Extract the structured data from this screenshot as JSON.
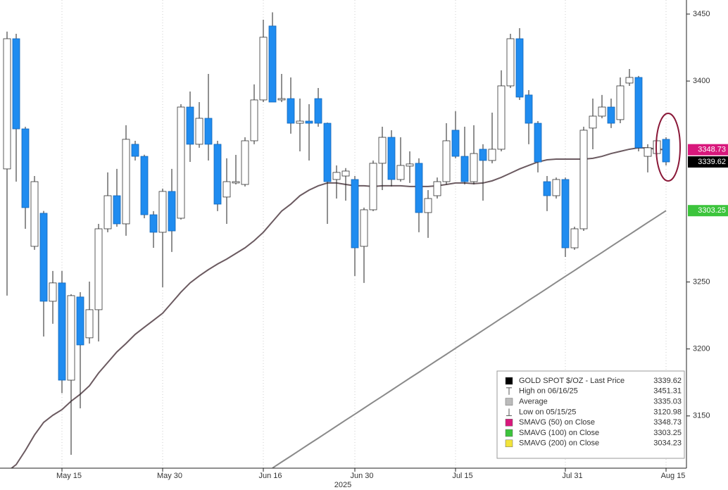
{
  "chart_data": {
    "type": "candlestick",
    "categories": [
      null,
      null,
      null,
      null,
      null,
      null,
      "May 15",
      null,
      null,
      null,
      null,
      null,
      null,
      null,
      null,
      null,
      null,
      "May 30",
      null,
      null,
      null,
      null,
      null,
      null,
      null,
      null,
      null,
      null,
      "Jun 16",
      null,
      null,
      null,
      null,
      null,
      null,
      null,
      null,
      null,
      "Jun 30",
      null,
      null,
      null,
      null,
      null,
      null,
      null,
      null,
      null,
      null,
      "Jul 15",
      null,
      null,
      null,
      null,
      null,
      null,
      null,
      null,
      null,
      null,
      null,
      "Jul 31",
      null,
      null,
      null,
      null,
      null,
      null,
      null,
      null,
      null,
      null,
      "Aug 15"
    ],
    "x_axis_year": "2025",
    "open": [
      3334.4,
      3431.6,
      3364.3,
      3276.6,
      3301.3,
      3235.6,
      3249.3,
      3176.7,
      3238.8,
      3208.3,
      3229.3,
      3289.7,
      3314.4,
      3293.4,
      3352.8,
      3343.8,
      3300.2,
      3287.1,
      3317.6,
      3297.6,
      3380.6,
      3352.8,
      3372.2,
      3352.8,
      3313.4,
      3323.9,
      3322.8,
      3355.4,
      3385.9,
      3441.1,
      3385.9,
      3386.9,
      3368.5,
      3370.1,
      3386.9,
      3368.5,
      3326.5,
      3329.1,
      3326.5,
      3276.6,
      3303.9,
      3338.6,
      3358,
      3326.5,
      3336.5,
      3338.6,
      3301.8,
      3314.4,
      3324.9,
      3363.3,
      3343.8,
      3324.9,
      3349.1,
      3340.7,
      3349.1,
      3396.4,
      3431.6,
      3389.6,
      3368.5,
      3324.9,
      3314.4,
      3326.5,
      3275.5,
      3289.7,
      3364.9,
      3373.8,
      3380.6,
      3371.2,
      3398.5,
      3402.7,
      3343.8,
      3345.9,
      3356.5
    ],
    "high": [
      3436.9,
      3435.3,
      3365.8,
      3329.1,
      3303,
      3258.2,
      3258.2,
      3240.9,
      3242.4,
      3250.3,
      3293.4,
      3331.8,
      3334.4,
      3367,
      3355.4,
      3345,
      3302.9,
      3319.7,
      3334.4,
      3382.7,
      3392.2,
      3384.3,
      3405.3,
      3355.4,
      3342.3,
      3344.9,
      3358,
      3397.5,
      3445.8,
      3451.31,
      3405.3,
      3402.7,
      3386.9,
      3382.7,
      3394.8,
      3369,
      3337,
      3335,
      3329.1,
      3305.5,
      3340.7,
      3365.9,
      3363.3,
      3358,
      3347.5,
      3342.3,
      3318.6,
      3328,
      3368.5,
      3377.5,
      3365.9,
      3367,
      3352.8,
      3376.4,
      3408,
      3435.3,
      3439.5,
      3393.2,
      3370.1,
      3329.1,
      3328,
      3328,
      3291.3,
      3365.9,
      3386.9,
      3389.6,
      3386.9,
      3402.7,
      3409,
      3403.8,
      3352.8,
      3357,
      3358
    ],
    "low": [
      3239.8,
      3324.9,
      3289.7,
      3274,
      3209.3,
      3218.8,
      3167,
      3120.98,
      3155.7,
      3204,
      3205.6,
      3287.1,
      3291.3,
      3284.5,
      3340.7,
      3297.6,
      3275.5,
      3246.1,
      3272.4,
      3296.6,
      3339.6,
      3350.2,
      3340.7,
      3302.9,
      3293.4,
      3322.8,
      3321.3,
      3352.8,
      3384.3,
      3384.3,
      3384.3,
      3360.7,
      3347.5,
      3340.7,
      3365.9,
      3293.4,
      3312.3,
      3310.7,
      3254.5,
      3249.3,
      3302.9,
      3318.6,
      3321.3,
      3324.9,
      3323.9,
      3287.1,
      3282.9,
      3312.3,
      3322.8,
      3342.3,
      3322.8,
      3322.8,
      3310.7,
      3338.6,
      3347.5,
      3394.8,
      3385.9,
      3352.8,
      3331.8,
      3302.9,
      3312.3,
      3268.7,
      3274,
      3288.1,
      3349.1,
      3372.2,
      3364.9,
      3368.5,
      3396.4,
      3347.5,
      3331.8,
      3340,
      3337
    ],
    "close": [
      3431.6,
      3364.3,
      3305.5,
      3324.9,
      3235.6,
      3249.3,
      3176.7,
      3239.8,
      3203,
      3229.3,
      3289.7,
      3314.4,
      3293.4,
      3356.5,
      3343.8,
      3300.2,
      3287.1,
      3317.6,
      3288.1,
      3380.6,
      3352.8,
      3372.2,
      3352.8,
      3308.1,
      3324.9,
      3324.9,
      3355.4,
      3385.9,
      3432.7,
      3384.3,
      3386.9,
      3368.5,
      3370.1,
      3368.5,
      3368.5,
      3324.9,
      3331.8,
      3332.8,
      3275.5,
      3303.9,
      3338.6,
      3358,
      3326.5,
      3337,
      3338.1,
      3301.8,
      3312.3,
      3324.9,
      3355.4,
      3343.8,
      3324.9,
      3345.9,
      3340.7,
      3349.1,
      3396.4,
      3431.6,
      3388,
      3368.5,
      3339.6,
      3314.4,
      3326.5,
      3275.5,
      3289.7,
      3363.3,
      3373.8,
      3380.6,
      3368.5,
      3396.4,
      3402.7,
      3350.2,
      3350.2,
      3355.4,
      3339.62
    ],
    "up_color": "#ffffff",
    "down_color": "#1f8cf0",
    "series": [
      {
        "color": "#6b5a60",
        "values": [
          3108.4,
          3113.7,
          3124.2,
          3135.8,
          3145.2,
          3150.5,
          3154.7,
          3161,
          3166.2,
          3172.5,
          3182,
          3189.9,
          3197.8,
          3204.1,
          3210.9,
          3216.2,
          3221.4,
          3226.7,
          3234.5,
          3242.4,
          3249.3,
          3254.5,
          3259.2,
          3263.4,
          3267.1,
          3271.3,
          3275.5,
          3280.8,
          3287.1,
          3295,
          3302.9,
          3308.1,
          3314.4,
          3318.6,
          3321.8,
          3323.9,
          3323.9,
          3322.8,
          3321.8,
          3321.8,
          3321.3,
          3321.8,
          3321.8,
          3321.8,
          3321.3,
          3321.3,
          3321.3,
          3321.8,
          3322.8,
          3323.9,
          3323.9,
          3323.4,
          3323.9,
          3325.5,
          3328.1,
          3331.2,
          3334.4,
          3337,
          3339.6,
          3341.2,
          3341.7,
          3341.7,
          3341.7,
          3341.7,
          3342.3,
          3343.8,
          3345.9,
          3347.5,
          3349.1,
          3350.2,
          3350,
          3349.1,
          3348.73
        ]
      },
      {
        "color": "#8a8a8a",
        "values": [
          null,
          null,
          null,
          null,
          null,
          null,
          null,
          null,
          null,
          null,
          null,
          null,
          null,
          null,
          null,
          null,
          null,
          null,
          null,
          null,
          null,
          null,
          null,
          null,
          null,
          null,
          null,
          null,
          null,
          3111.1,
          3115.6,
          3120.0,
          3124.5,
          3129.0,
          3133.4,
          3137.9,
          3142.4,
          3146.9,
          3151.3,
          3155.8,
          3160.3,
          3164.7,
          3169.2,
          3173.7,
          3178.2,
          3182.6,
          3187.1,
          3191.6,
          3196.0,
          3200.5,
          3205.0,
          3209.4,
          3213.9,
          3218.4,
          3222.9,
          3227.3,
          3231.8,
          3236.3,
          3240.7,
          3245.2,
          3249.7,
          3254.2,
          3258.6,
          3263.1,
          3267.6,
          3272.0,
          3276.5,
          3281.0,
          3285.4,
          3289.9,
          3294.4,
          3298.8,
          3303.25
        ]
      }
    ],
    "ylim": [
      3111,
      3460.5
    ],
    "yticks": [
      3150,
      3200,
      3250,
      3400,
      3450
    ],
    "grid": true,
    "legend_position": "lower-right",
    "legend": [
      {
        "label": "GOLD SPOT $/OZ - Last Price",
        "value": 3339.62,
        "color": "#000000"
      },
      {
        "label": "High on 06/16/25",
        "value": 3451.31
      },
      {
        "label": "Average",
        "value": 3335.03,
        "color": "#bbbbbb"
      },
      {
        "label": "Low on 05/15/25",
        "value": 3120.98
      },
      {
        "label": "SMAVG (50)  on Close",
        "value": 3348.73,
        "color": "#d8187c"
      },
      {
        "label": "SMAVG (100)  on Close",
        "value": 3303.25,
        "color": "#3cc43c"
      },
      {
        "label": "SMAVG (200)  on Close",
        "value": 3034.23,
        "color": "#f2e43a"
      }
    ]
  }
}
